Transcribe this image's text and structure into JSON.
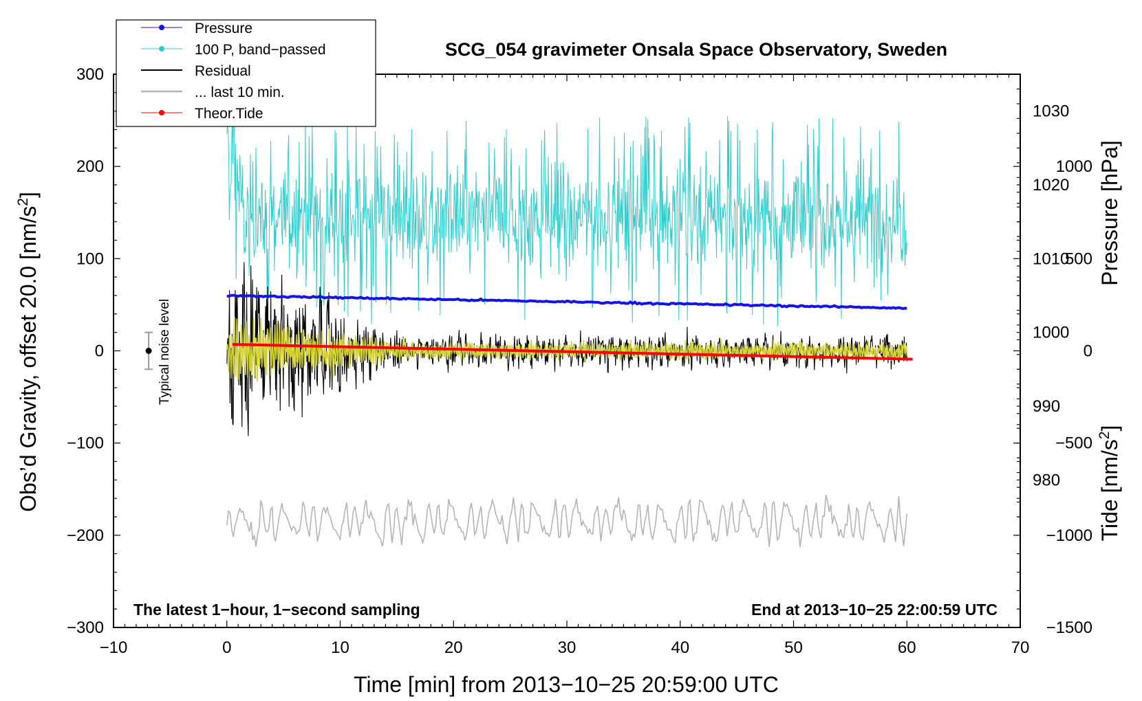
{
  "chart_data": {
    "type": "line",
    "title": "SCG_054 gravimeter Onsala Space Observatory, Sweden",
    "xlabel": "Time [min] from 2013−10−25 20:59:00 UTC",
    "ylabel_left_main": "Obs’d Gravity, offset 20.0 [nm/s",
    "ylabel_left_sup": "2",
    "ylabel_left_close": "]",
    "ylabel_right_pressure": "Pressure [hPa]",
    "ylabel_right_tide_main": "Tide [nm/s",
    "ylabel_right_tide_sup": "2",
    "ylabel_right_tide_close": "]",
    "xlim": [
      -10,
      70
    ],
    "ylim_left": [
      -300,
      300
    ],
    "ylim_pressure": [
      960,
      1035
    ],
    "ylim_tide": [
      -1500,
      1500
    ],
    "x_ticks": [
      "−10",
      "0",
      "10",
      "20",
      "30",
      "40",
      "50",
      "60",
      "70"
    ],
    "y_left_ticks": [
      "300",
      "200",
      "100",
      "0",
      "−100",
      "−200",
      "−300"
    ],
    "y_pressure_ticks": [
      "1030",
      "1020",
      "1010",
      "1000",
      "990",
      "980"
    ],
    "y_tide_ticks": [
      "1000",
      "500",
      "0",
      "−500",
      "−1000",
      "−1500"
    ],
    "legend": {
      "placement": "top-left",
      "entries": [
        {
          "label": "Pressure",
          "color": "#1414e6",
          "marker": true
        },
        {
          "label": "100 P, band−passed",
          "color": "#33cccc",
          "marker": true
        },
        {
          "label": "Residual",
          "color": "#000000",
          "marker": false
        },
        {
          "label": "... last 10 min.",
          "color": "#b4b4b4",
          "marker": false
        },
        {
          "label": "Theor.Tide",
          "color": "#ff0000",
          "marker": true
        }
      ]
    },
    "annotations": {
      "left_note": "The latest 1−hour, 1−second sampling",
      "right_note": "End at 2013−10−25 22:00:59 UTC",
      "noise_label": "Typical noise level"
    },
    "noise_level": {
      "x": -6.9,
      "center": 0,
      "half_range": 20
    },
    "series": [
      {
        "name": "Pressure",
        "axis": "pressure",
        "color": "#1414e6",
        "x_range": [
          0,
          60
        ],
        "start": 1005.0,
        "end": 1003.3
      },
      {
        "name": "100 P, band−passed",
        "axis": "left",
        "color": "#33cccc",
        "x_range": [
          0,
          60
        ],
        "mean": 145,
        "spread": 55
      },
      {
        "name": "Residual",
        "axis": "left",
        "color": "#000000",
        "x_range": [
          0,
          60
        ],
        "mean": 0,
        "amplitude_start": 95,
        "amplitude_end": 20
      },
      {
        "name": "Residual, smoothed",
        "axis": "left",
        "color": "#d2d232",
        "x_range": [
          0,
          60
        ],
        "mean": 0,
        "amplitude_start": 35,
        "amplitude_end": 8
      },
      {
        "name": "... last 10 min.",
        "axis": "left",
        "color": "#b4b4b4",
        "x_range": [
          0,
          60
        ],
        "mean": -185,
        "amplitude": 18
      },
      {
        "name": "Theor.Tide",
        "axis": "tide",
        "color": "#ff0000",
        "x_range": [
          0.5,
          60.5
        ],
        "start": 35,
        "end": -45
      }
    ]
  }
}
